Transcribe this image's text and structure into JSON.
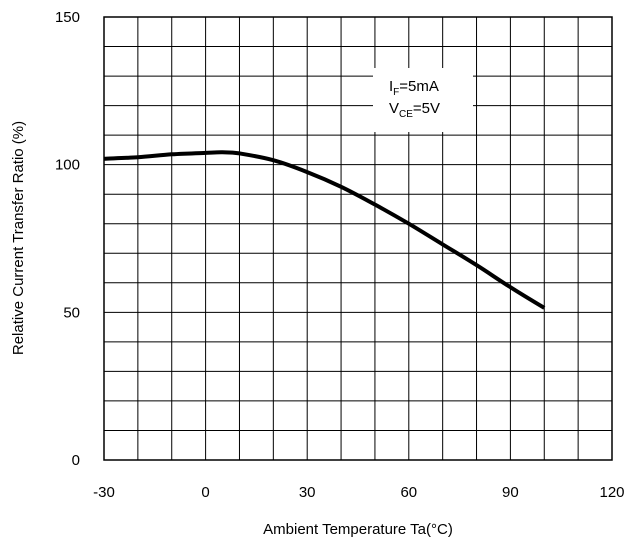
{
  "chart_data": {
    "type": "line",
    "xlabel": "Ambient Temperature Ta(°C)",
    "ylabel": "Relative Current Transfer Ratio (%)",
    "xlim": [
      -30,
      120
    ],
    "ylim": [
      0,
      150
    ],
    "xticks": [
      "-30",
      "0",
      "30",
      "60",
      "90",
      "120"
    ],
    "yticks": [
      "0",
      "50",
      "100",
      "150"
    ],
    "grid": true,
    "annotation": {
      "line1": {
        "main": "I",
        "sub": "F",
        "rest": "=5mA"
      },
      "line2": {
        "main": "V",
        "sub": "CE",
        "rest": "=5V"
      }
    },
    "series": [
      {
        "x": [
          -30,
          -20,
          -10,
          0,
          5,
          10,
          20,
          30,
          40,
          50,
          60,
          70,
          80,
          90,
          100
        ],
        "values": [
          102,
          102.5,
          103.5,
          104,
          104.2,
          103.8,
          101.5,
          97.5,
          92.5,
          86.5,
          80,
          73,
          66,
          58.5,
          51.5
        ]
      }
    ],
    "line_color": "#000000"
  }
}
